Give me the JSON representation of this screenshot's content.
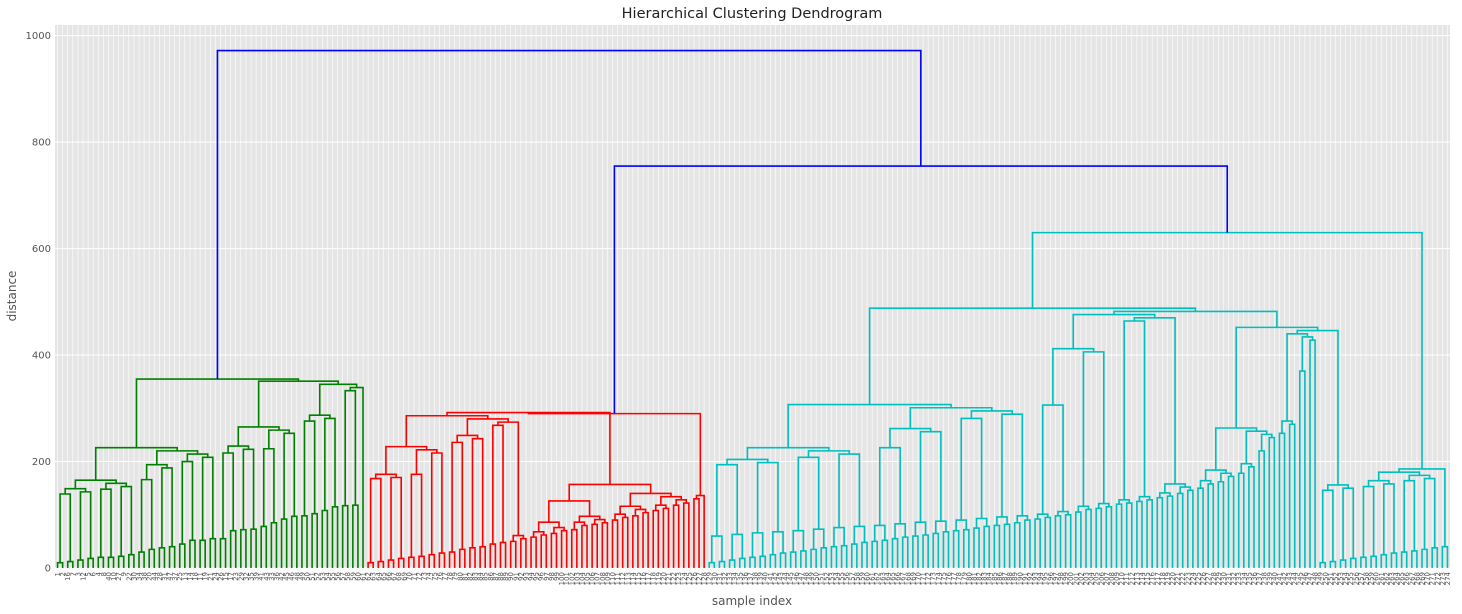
{
  "chart_data": {
    "type": "dendrogram",
    "title": "Hierarchical Clustering Dendrogram",
    "xlabel": "sample index",
    "ylabel": "distance",
    "ylim": [
      0,
      1020
    ],
    "yticks": [
      0,
      200,
      400,
      600,
      800,
      1000
    ],
    "grid": true,
    "background": "#e5e5e5",
    "link_color_above_threshold": "#0000ff",
    "clusters": [
      {
        "color": "#008000",
        "leaf_labels": [
          "1",
          "2",
          "16",
          "7",
          "3",
          "12",
          "5",
          "6",
          "4",
          "8",
          "40",
          "10",
          "27",
          "9",
          "22",
          "30",
          "34",
          "38",
          "20",
          "44",
          "28",
          "31",
          "47",
          "37",
          "25",
          "13",
          "14",
          "18",
          "11",
          "19",
          "21",
          "24",
          "26",
          "15",
          "17",
          "23",
          "29",
          "32",
          "35",
          "39",
          "41",
          "43",
          "33",
          "36",
          "42",
          "45",
          "46",
          "48",
          "49",
          "50",
          "51",
          "52",
          "53",
          "54",
          "55",
          "56",
          "57",
          "58",
          "59",
          "60",
          "61"
        ],
        "root_height": 355,
        "internal_heights": [
          263,
          258,
          205,
          198,
          148,
          121,
          117,
          102,
          97,
          73,
          55,
          52,
          20,
          315,
          235,
          206,
          190,
          182,
          170,
          135,
          130,
          125,
          118,
          115,
          108,
          98,
          92,
          85,
          78,
          72,
          70,
          55,
          52,
          45,
          40,
          38,
          35,
          30,
          25,
          22,
          20,
          18,
          15,
          12,
          10
        ]
      },
      {
        "color": "#ff0000",
        "leaf_labels": [
          "62",
          "63",
          "64",
          "65",
          "66",
          "67",
          "68",
          "69",
          "70",
          "71",
          "72",
          "73",
          "74",
          "75",
          "76",
          "77",
          "78",
          "79",
          "80",
          "81",
          "82",
          "83",
          "84",
          "85",
          "86",
          "87",
          "88",
          "89",
          "90",
          "91",
          "92",
          "93",
          "94",
          "95",
          "96",
          "97",
          "98",
          "99",
          "100",
          "101",
          "102",
          "103",
          "104",
          "105",
          "106",
          "107",
          "108",
          "109",
          "110",
          "111",
          "112",
          "113",
          "114",
          "115",
          "116",
          "117",
          "118",
          "119",
          "120",
          "121",
          "122",
          "123",
          "124",
          "125",
          "126",
          "127",
          "128"
        ],
        "root_height": 290,
        "internal_heights": [
          250,
          225,
          218,
          198,
          158,
          152,
          150,
          130,
          122,
          118,
          112,
          108,
          104,
          98,
          95,
          90,
          85,
          82,
          80,
          72,
          70,
          65,
          62,
          58,
          55,
          50,
          48,
          45,
          40,
          38,
          35,
          30,
          28,
          25,
          22,
          20,
          18,
          15,
          12,
          10
        ]
      },
      {
        "color": "#00bfbf",
        "leaf_labels": [
          "129",
          "130",
          "131",
          "132",
          "133",
          "134",
          "135",
          "136",
          "137",
          "138",
          "139",
          "140",
          "141",
          "142",
          "143",
          "144",
          "145",
          "146",
          "147",
          "148",
          "149",
          "150",
          "151",
          "152",
          "153",
          "154",
          "155",
          "156",
          "157",
          "158",
          "159",
          "160",
          "161",
          "162",
          "163",
          "164",
          "165",
          "166",
          "167",
          "168",
          "169",
          "170",
          "171",
          "172",
          "173",
          "174",
          "175",
          "176",
          "177",
          "178",
          "179",
          "180",
          "181",
          "182",
          "183",
          "184",
          "185",
          "186",
          "187",
          "188",
          "189",
          "190",
          "191",
          "192",
          "193",
          "194",
          "195",
          "196",
          "197",
          "198",
          "199",
          "200",
          "201",
          "202",
          "203",
          "204",
          "205",
          "206",
          "207",
          "208",
          "209",
          "210",
          "211",
          "212",
          "213",
          "214",
          "215",
          "216",
          "217",
          "218",
          "219",
          "220",
          "221",
          "222",
          "223",
          "224",
          "225",
          "226",
          "227",
          "228",
          "229",
          "230",
          "231",
          "232",
          "233",
          "234",
          "235",
          "236",
          "237",
          "238",
          "239",
          "240",
          "241",
          "242",
          "243",
          "244",
          "245",
          "246",
          "247",
          "248",
          "249",
          "250",
          "251",
          "252",
          "253",
          "254",
          "255",
          "256",
          "257",
          "258",
          "259",
          "260",
          "261",
          "262",
          "263",
          "264",
          "265",
          "266",
          "267",
          "268",
          "269",
          "270",
          "271",
          "272",
          "273",
          "274"
        ],
        "root_height": 630,
        "internal_heights": [
          428,
          370,
          270,
          253,
          245,
          220,
          190,
          178,
          172,
          162,
          158,
          150,
          146,
          140,
          135,
          132,
          128,
          125,
          122,
          120,
          115,
          112,
          110,
          105,
          100,
          98,
          95,
          92,
          90,
          85,
          82,
          80,
          78,
          75,
          72,
          70,
          68,
          65,
          62,
          60,
          58,
          55,
          52,
          50,
          48,
          45,
          42,
          40,
          38,
          35,
          32,
          30,
          28,
          25,
          22,
          20,
          18,
          15,
          12,
          10
        ]
      }
    ],
    "upper_links": [
      {
        "children": [
          1,
          2
        ],
        "height": 755
      },
      {
        "children": [
          0,
          "upper_0"
        ],
        "height": 972
      }
    ]
  }
}
